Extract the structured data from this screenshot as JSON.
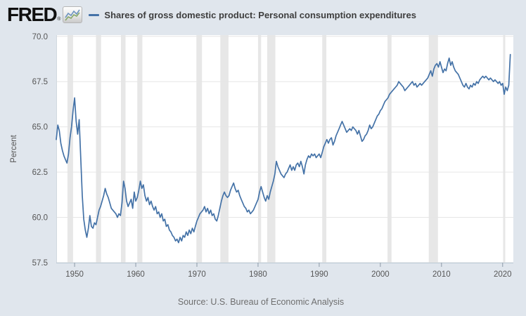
{
  "header": {
    "logo_text": "FRED",
    "registered_mark": "®",
    "legend_label": "Shares of gross domestic product: Personal consumption expenditures"
  },
  "footer": {
    "source": "Source: U.S. Bureau of Economic Analysis"
  },
  "colors": {
    "background": "#e0e6ed",
    "plot_background": "#ffffff",
    "line": "#4472a7",
    "recession_band": "#e7e7e7",
    "grid": "#e6e6e6",
    "axis": "#b9c8d4",
    "tick": "#8d9aa8",
    "tick_label": "#565656"
  },
  "chart_data": {
    "type": "line",
    "title": "Shares of gross domestic product: Personal consumption expenditures",
    "xlabel": "",
    "ylabel": "Percent",
    "ylim": [
      57.5,
      70.0
    ],
    "xlim": [
      1947.0,
      2021.75
    ],
    "y_ticks": [
      57.5,
      60.0,
      62.5,
      65.0,
      67.5,
      70.0
    ],
    "x_ticks": [
      1950,
      1960,
      1970,
      1980,
      1990,
      2000,
      2010,
      2020
    ],
    "grid": true,
    "legend_position": "top",
    "recession_bands": [
      [
        1948.83,
        1949.75
      ],
      [
        1953.5,
        1954.33
      ],
      [
        1957.58,
        1958.33
      ],
      [
        1960.25,
        1961.08
      ],
      [
        1969.92,
        1970.83
      ],
      [
        1973.83,
        1975.17
      ],
      [
        1980.0,
        1980.5
      ],
      [
        1981.5,
        1982.83
      ],
      [
        1990.5,
        1991.17
      ],
      [
        2001.17,
        2001.83
      ],
      [
        2007.92,
        2009.42
      ],
      [
        2020.08,
        2020.42
      ]
    ],
    "series": [
      {
        "name": "Shares of gross domestic product: Personal consumption expenditures",
        "units": "Percent",
        "start_year": 1947,
        "frequency": "quarterly",
        "values": [
          64.3,
          65.1,
          64.8,
          64.1,
          63.7,
          63.4,
          63.2,
          63.0,
          63.5,
          64.4,
          65.0,
          65.9,
          66.6,
          65.3,
          64.6,
          65.4,
          63.3,
          61.2,
          59.9,
          59.3,
          58.9,
          59.4,
          60.1,
          59.5,
          59.4,
          59.7,
          59.6,
          60.0,
          60.4,
          60.6,
          60.9,
          61.2,
          61.6,
          61.3,
          61.1,
          60.8,
          60.5,
          60.4,
          60.3,
          60.2,
          60.0,
          60.2,
          60.1,
          60.8,
          62.0,
          61.6,
          60.9,
          60.6,
          60.8,
          61.0,
          60.5,
          61.4,
          60.9,
          61.1,
          61.5,
          62.0,
          61.6,
          61.8,
          61.2,
          60.9,
          61.1,
          60.7,
          60.9,
          60.6,
          60.4,
          60.6,
          60.2,
          60.3,
          60.0,
          60.2,
          59.8,
          59.9,
          59.5,
          59.6,
          59.3,
          59.2,
          59.0,
          58.9,
          58.7,
          58.8,
          58.6,
          58.9,
          58.7,
          59.0,
          58.9,
          59.2,
          59.0,
          59.3,
          59.1,
          59.4,
          59.2,
          59.5,
          59.8,
          60.0,
          60.2,
          60.3,
          60.4,
          60.6,
          60.3,
          60.5,
          60.2,
          60.4,
          60.1,
          60.2,
          59.9,
          59.8,
          60.1,
          60.5,
          60.9,
          61.2,
          61.4,
          61.2,
          61.1,
          61.2,
          61.5,
          61.7,
          61.9,
          61.6,
          61.4,
          61.5,
          61.2,
          61.0,
          60.8,
          60.6,
          60.5,
          60.3,
          60.4,
          60.2,
          60.3,
          60.4,
          60.6,
          60.8,
          61.0,
          61.4,
          61.7,
          61.4,
          61.1,
          60.9,
          61.2,
          61.0,
          61.4,
          61.7,
          62.0,
          62.4,
          63.1,
          62.8,
          62.6,
          62.4,
          62.3,
          62.2,
          62.4,
          62.5,
          62.7,
          62.9,
          62.6,
          62.8,
          62.6,
          62.9,
          63.0,
          62.8,
          63.1,
          62.8,
          62.4,
          62.9,
          63.2,
          63.4,
          63.3,
          63.5,
          63.4,
          63.5,
          63.3,
          63.4,
          63.5,
          63.3,
          63.6,
          63.9,
          64.1,
          64.3,
          64.1,
          64.3,
          64.4,
          64.0,
          64.2,
          64.5,
          64.7,
          64.9,
          65.1,
          65.3,
          65.1,
          64.9,
          64.7,
          64.8,
          64.9,
          64.8,
          65.0,
          64.9,
          64.8,
          64.6,
          64.8,
          64.5,
          64.2,
          64.3,
          64.5,
          64.6,
          64.8,
          65.1,
          64.9,
          65.0,
          65.2,
          65.4,
          65.6,
          65.7,
          65.9,
          66.0,
          66.2,
          66.4,
          66.5,
          66.6,
          66.8,
          66.9,
          67.0,
          67.1,
          67.2,
          67.3,
          67.5,
          67.4,
          67.3,
          67.2,
          67.0,
          67.1,
          67.2,
          67.3,
          67.4,
          67.5,
          67.3,
          67.4,
          67.2,
          67.3,
          67.4,
          67.3,
          67.4,
          67.5,
          67.6,
          67.7,
          67.9,
          68.1,
          67.8,
          68.2,
          68.4,
          68.5,
          68.3,
          68.6,
          68.3,
          68.0,
          68.2,
          68.1,
          68.5,
          68.8,
          68.4,
          68.6,
          68.3,
          68.1,
          68.0,
          67.9,
          67.7,
          67.5,
          67.3,
          67.2,
          67.4,
          67.2,
          67.1,
          67.3,
          67.2,
          67.4,
          67.3,
          67.5,
          67.4,
          67.6,
          67.7,
          67.8,
          67.7,
          67.8,
          67.7,
          67.6,
          67.7,
          67.6,
          67.5,
          67.6,
          67.5,
          67.4,
          67.5,
          67.3,
          67.4,
          66.8,
          67.2,
          67.0,
          67.3,
          69.0
        ]
      }
    ]
  }
}
